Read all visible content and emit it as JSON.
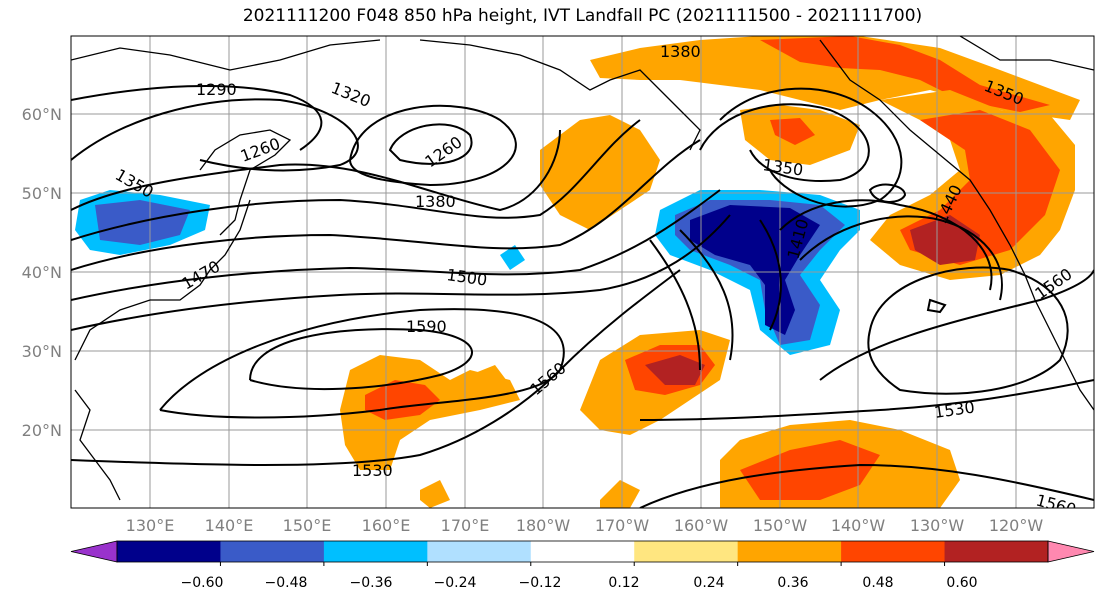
{
  "title": "2021111200 F048 850 hPa height, IVT Landfall PC (2021111500 - 2021111700)",
  "axes": {
    "lat_ticks": [
      "20°N",
      "30°N",
      "40°N",
      "50°N",
      "60°N"
    ],
    "lon_ticks": [
      "130°E",
      "140°E",
      "150°E",
      "160°E",
      "170°E",
      "180°W",
      "170°W",
      "160°W",
      "150°W",
      "140°W",
      "130°W",
      "120°W"
    ]
  },
  "colorbar": {
    "labels": [
      "−0.60",
      "−0.48",
      "−0.36",
      "−0.24",
      "−0.12",
      "0.12",
      "0.24",
      "0.36",
      "0.48",
      "0.60"
    ],
    "colors": [
      "#9932cc",
      "#00008b",
      "#3a5bc8",
      "#00bfff",
      "#b0e0ff",
      "#ffffff",
      "#ffe680",
      "#ffa500",
      "#ff4500",
      "#b22222",
      "#ff88b0"
    ]
  },
  "contour_labels": [
    "1290",
    "1320",
    "1260",
    "1260",
    "1350",
    "1380",
    "1470",
    "1500",
    "1590",
    "1560",
    "1530",
    "1380",
    "1350",
    "1350",
    "1410",
    "1440",
    "1560",
    "1530",
    "1560"
  ],
  "colors": {
    "land_line": "#000000",
    "grid": "#999999",
    "contour": "#000000"
  }
}
